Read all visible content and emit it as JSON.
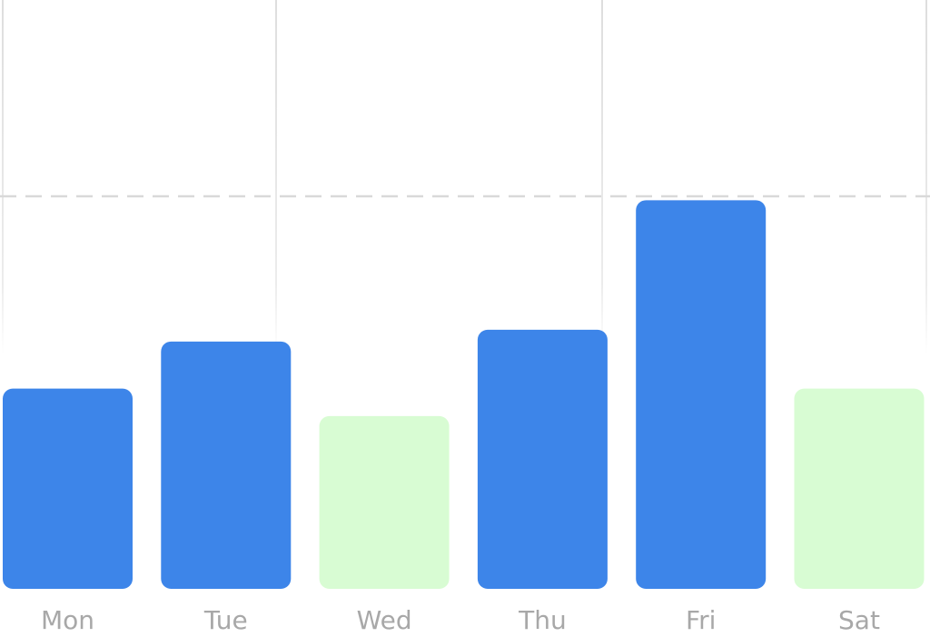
{
  "chart_data": {
    "type": "bar",
    "categories": [
      "Mon",
      "Tue",
      "Wed",
      "Thu",
      "Fri",
      "Sat"
    ],
    "values": [
      51,
      63,
      44,
      66,
      99,
      51
    ],
    "colors": [
      "#3d85e9",
      "#3d85e9",
      "#d8fcd3",
      "#3d85e9",
      "#3d85e9",
      "#d8fcd3"
    ],
    "ylim": [
      0,
      150
    ],
    "reference_line": 100
  }
}
